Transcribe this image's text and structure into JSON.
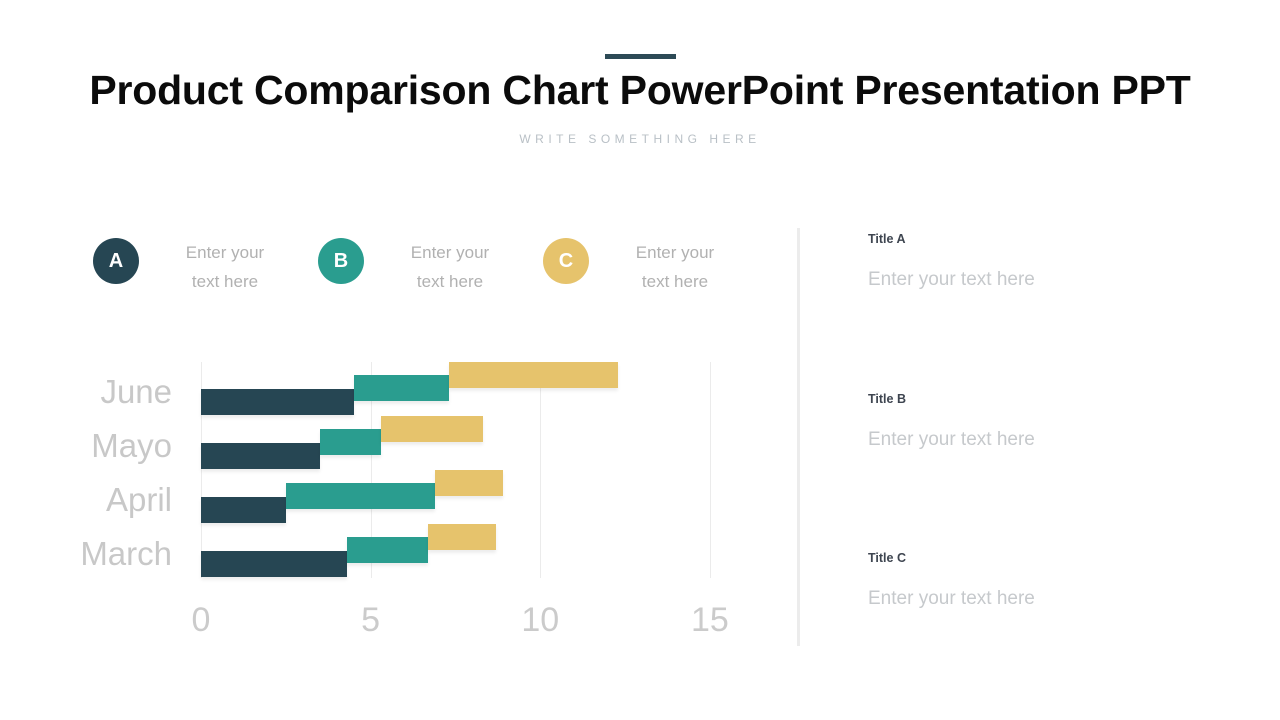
{
  "header": {
    "title": "Product Comparison Chart PowerPoint Presentation PPT",
    "subtitle": "WRITE SOMETHING HERE",
    "accent_color": "#2d4a56"
  },
  "legend": {
    "items": [
      {
        "letter": "A",
        "color": "#264653",
        "text": "Enter your text here"
      },
      {
        "letter": "B",
        "color": "#2a9d8f",
        "text": "Enter your text here"
      },
      {
        "letter": "C",
        "color": "#e6c36c",
        "text": "Enter your text here"
      }
    ]
  },
  "chart_data": {
    "type": "bar",
    "orientation": "horizontal",
    "stacked": true,
    "title": "",
    "xlabel": "",
    "ylabel": "",
    "categories": [
      "June",
      "Mayo",
      "April",
      "March"
    ],
    "series": [
      {
        "name": "A",
        "color": "#264653",
        "values": [
          4.5,
          3.5,
          2.5,
          4.3
        ]
      },
      {
        "name": "B",
        "color": "#2a9d8f",
        "values": [
          2.8,
          1.8,
          4.4,
          2.4
        ]
      },
      {
        "name": "C",
        "color": "#e6c36c",
        "values": [
          5.0,
          3.0,
          2.0,
          2.0
        ]
      }
    ],
    "x_ticks": [
      "0",
      "5",
      "10",
      "15"
    ],
    "xlim": [
      0,
      15
    ],
    "grid": "vertical",
    "legend_position": "top",
    "label_color": "#c8c8c8"
  },
  "details": {
    "sections": [
      {
        "title": "Title A",
        "placeholder": "Enter your text here"
      },
      {
        "title": "Title B",
        "placeholder": "Enter your text here"
      },
      {
        "title": "Title C",
        "placeholder": "Enter your text here"
      }
    ]
  }
}
